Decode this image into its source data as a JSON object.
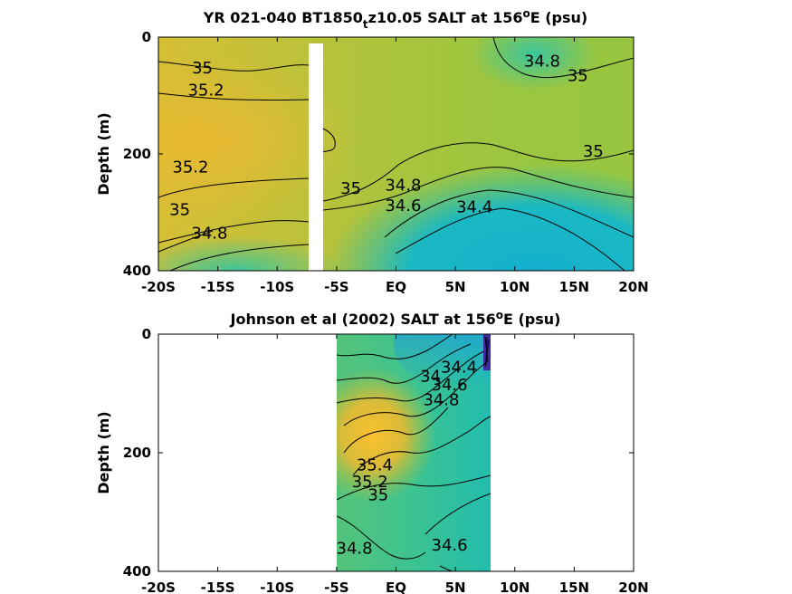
{
  "chart_data": [
    {
      "type": "heatmap",
      "title": "YR 021-040 BT1850",
      "title_subscript": "t",
      "title_rest": "z10.05 SALT at 156",
      "title_degree": "o",
      "title_end": "E (psu)",
      "ylabel": "Depth (m)",
      "xticks": [
        "-20S",
        "-15S",
        "-10S",
        "-5S",
        "EQ",
        "5N",
        "10N",
        "15N",
        "20N"
      ],
      "yticks": [
        "0",
        "200",
        "400"
      ],
      "xlim": [
        -20,
        20
      ],
      "ylim": [
        0,
        400
      ],
      "colormap": [
        "#3e26a8",
        "#1896e6",
        "#14bcbe",
        "#46c785",
        "#a5c43a",
        "#eaba30",
        "#f9d42b"
      ],
      "salt_range": [
        33.5,
        35.5
      ],
      "contour_labels": [
        {
          "text": "35",
          "x": -16.3,
          "y": 62
        },
        {
          "text": "35.2",
          "x": -16.0,
          "y": 100
        },
        {
          "text": "35.2",
          "x": -17.3,
          "y": 232
        },
        {
          "text": "35",
          "x": -18.2,
          "y": 305
        },
        {
          "text": "34.8",
          "x": -15.7,
          "y": 345
        },
        {
          "text": "35",
          "x": -3.8,
          "y": 268
        },
        {
          "text": "34.8",
          "x": 0.6,
          "y": 263
        },
        {
          "text": "34.6",
          "x": 0.6,
          "y": 298
        },
        {
          "text": "34.4",
          "x": 6.6,
          "y": 300
        },
        {
          "text": "34.8",
          "x": 12.3,
          "y": 50
        },
        {
          "text": "35",
          "x": 15.3,
          "y": 75
        },
        {
          "text": "35",
          "x": 16.6,
          "y": 205
        }
      ]
    },
    {
      "type": "heatmap",
      "title": "Johnson et al (2002) SALT at 156",
      "title_degree": "o",
      "title_end": "E (psu)",
      "ylabel": "Depth (m)",
      "xticks": [
        "-20S",
        "-15S",
        "-10S",
        "-5S",
        "EQ",
        "5N",
        "10N",
        "15N",
        "20N"
      ],
      "yticks": [
        "0",
        "200",
        "400"
      ],
      "xlim": [
        -20,
        20
      ],
      "ylim": [
        0,
        400
      ],
      "data_xrange": [
        -5,
        8
      ],
      "contour_labels": [
        {
          "text": "34.4",
          "x": 5.3,
          "y": 65
        },
        {
          "text": "34.6",
          "x": 4.5,
          "y": 95
        },
        {
          "text": "34.8",
          "x": 3.8,
          "y": 120
        },
        {
          "text": "34",
          "x": 2.9,
          "y": 80
        },
        {
          "text": "35.4",
          "x": -1.8,
          "y": 230
        },
        {
          "text": "35.2",
          "x": -2.2,
          "y": 258
        },
        {
          "text": "35",
          "x": -1.5,
          "y": 280
        },
        {
          "text": "34.8",
          "x": -3.5,
          "y": 370
        },
        {
          "text": "34.6",
          "x": 4.5,
          "y": 365
        }
      ]
    }
  ]
}
